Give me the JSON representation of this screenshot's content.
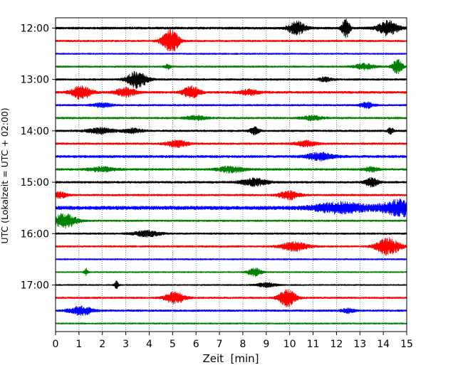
{
  "chart_data": {
    "type": "line",
    "chart_kind": "helicorder seismogram",
    "title": "",
    "xlabel": "Zeit  [min]",
    "ylabel": "UTC (Lokalzeit = UTC + 02:00)",
    "xlim": [
      0,
      15
    ],
    "x_ticks": [
      "0",
      "1",
      "2",
      "3",
      "4",
      "5",
      "6",
      "7",
      "8",
      "9",
      "10",
      "11",
      "12",
      "13",
      "14",
      "15"
    ],
    "y_ticks": [
      {
        "label": "12:00",
        "row": 0
      },
      {
        "label": "13:00",
        "row": 4
      },
      {
        "label": "14:00",
        "row": 8
      },
      {
        "label": "15:00",
        "row": 12
      },
      {
        "label": "16:00",
        "row": 16
      },
      {
        "label": "17:00",
        "row": 20
      }
    ],
    "vertical_grid": "dotted at every minute",
    "line_colors": [
      "#000000",
      "#ff0000",
      "#0000ff",
      "#008000"
    ],
    "series": [
      {
        "start": "12:00",
        "color": "#000000",
        "noise": 1.6,
        "events": [
          {
            "t": 10.3,
            "amp": 9,
            "w": 0.25
          },
          {
            "t": 12.4,
            "amp": 14,
            "w": 0.12
          },
          {
            "t": 14.2,
            "amp": 10,
            "w": 0.3
          }
        ]
      },
      {
        "start": "12:15",
        "color": "#ff0000",
        "noise": 1.2,
        "events": [
          {
            "t": 5.0,
            "amp": 14,
            "w": 0.2
          },
          {
            "t": 4.7,
            "amp": 6,
            "w": 0.2
          }
        ]
      },
      {
        "start": "12:30",
        "color": "#0000ff",
        "noise": 1.0,
        "events": []
      },
      {
        "start": "12:45",
        "color": "#008000",
        "noise": 1.2,
        "events": [
          {
            "t": 14.6,
            "amp": 10,
            "w": 0.15
          },
          {
            "t": 13.2,
            "amp": 4,
            "w": 0.3
          },
          {
            "t": 4.8,
            "amp": 3,
            "w": 0.1
          }
        ]
      },
      {
        "start": "13:00",
        "color": "#000000",
        "noise": 1.3,
        "events": [
          {
            "t": 3.5,
            "amp": 12,
            "w": 0.3
          },
          {
            "t": 11.5,
            "amp": 3,
            "w": 0.2
          }
        ]
      },
      {
        "start": "13:15",
        "color": "#ff0000",
        "noise": 1.5,
        "events": [
          {
            "t": 1.1,
            "amp": 9,
            "w": 0.3
          },
          {
            "t": 3.0,
            "amp": 6,
            "w": 0.3
          },
          {
            "t": 5.8,
            "amp": 8,
            "w": 0.25
          },
          {
            "t": 8.3,
            "amp": 4,
            "w": 0.3
          }
        ]
      },
      {
        "start": "13:30",
        "color": "#0000ff",
        "noise": 1.2,
        "events": [
          {
            "t": 2.0,
            "amp": 3,
            "w": 0.3
          },
          {
            "t": 13.3,
            "amp": 4,
            "w": 0.2
          }
        ]
      },
      {
        "start": "13:45",
        "color": "#008000",
        "noise": 1.3,
        "events": [
          {
            "t": 6.0,
            "amp": 3,
            "w": 0.3
          },
          {
            "t": 11.0,
            "amp": 3,
            "w": 0.3
          }
        ]
      },
      {
        "start": "14:00",
        "color": "#000000",
        "noise": 1.3,
        "events": [
          {
            "t": 1.9,
            "amp": 4,
            "w": 0.4
          },
          {
            "t": 3.3,
            "amp": 3,
            "w": 0.3
          },
          {
            "t": 8.5,
            "amp": 5,
            "w": 0.15
          },
          {
            "t": 14.3,
            "amp": 5,
            "w": 0.08
          }
        ]
      },
      {
        "start": "14:15",
        "color": "#ff0000",
        "noise": 1.3,
        "events": [
          {
            "t": 5.2,
            "amp": 5,
            "w": 0.3
          },
          {
            "t": 10.7,
            "amp": 4,
            "w": 0.3
          }
        ]
      },
      {
        "start": "14:30",
        "color": "#0000ff",
        "noise": 1.7,
        "events": [
          {
            "t": 11.3,
            "amp": 5,
            "w": 0.4
          }
        ]
      },
      {
        "start": "14:45",
        "color": "#008000",
        "noise": 1.4,
        "events": [
          {
            "t": 2.0,
            "amp": 3,
            "w": 0.4
          },
          {
            "t": 7.5,
            "amp": 4,
            "w": 0.4
          },
          {
            "t": 13.5,
            "amp": 3,
            "w": 0.2
          }
        ]
      },
      {
        "start": "15:00",
        "color": "#000000",
        "noise": 1.4,
        "events": [
          {
            "t": 8.5,
            "amp": 5,
            "w": 0.4
          },
          {
            "t": 13.5,
            "amp": 6,
            "w": 0.2
          }
        ]
      },
      {
        "start": "15:15",
        "color": "#ff0000",
        "noise": 1.3,
        "events": [
          {
            "t": 0.2,
            "amp": 4,
            "w": 0.2
          },
          {
            "t": 10.0,
            "amp": 6,
            "w": 0.3
          }
        ]
      },
      {
        "start": "15:30",
        "color": "#0000ff",
        "noise": 2.5,
        "events": [
          {
            "t": 12.2,
            "amp": 7,
            "w": 0.8
          },
          {
            "t": 14.8,
            "amp": 11,
            "w": 0.6
          }
        ]
      },
      {
        "start": "15:45",
        "color": "#008000",
        "noise": 1.2,
        "events": [
          {
            "t": 0.4,
            "amp": 10,
            "w": 0.35
          }
        ]
      },
      {
        "start": "16:00",
        "color": "#000000",
        "noise": 1.2,
        "events": [
          {
            "t": 3.9,
            "amp": 4,
            "w": 0.4
          }
        ]
      },
      {
        "start": "16:15",
        "color": "#ff0000",
        "noise": 1.2,
        "events": [
          {
            "t": 10.2,
            "amp": 6,
            "w": 0.4
          },
          {
            "t": 14.2,
            "amp": 12,
            "w": 0.35
          }
        ]
      },
      {
        "start": "16:30",
        "color": "#0000ff",
        "noise": 1.0,
        "events": []
      },
      {
        "start": "16:45",
        "color": "#008000",
        "noise": 0.9,
        "events": [
          {
            "t": 1.3,
            "amp": 5,
            "w": 0.06
          },
          {
            "t": 8.5,
            "amp": 6,
            "w": 0.2
          }
        ]
      },
      {
        "start": "17:00",
        "color": "#000000",
        "noise": 0.9,
        "events": [
          {
            "t": 2.6,
            "amp": 5,
            "w": 0.06
          },
          {
            "t": 9.0,
            "amp": 3,
            "w": 0.3
          }
        ]
      },
      {
        "start": "17:15",
        "color": "#ff0000",
        "noise": 1.2,
        "events": [
          {
            "t": 5.1,
            "amp": 8,
            "w": 0.3
          },
          {
            "t": 9.9,
            "amp": 12,
            "w": 0.25
          }
        ]
      },
      {
        "start": "17:30",
        "color": "#0000ff",
        "noise": 1.3,
        "events": [
          {
            "t": 1.1,
            "amp": 6,
            "w": 0.35
          },
          {
            "t": 12.5,
            "amp": 3,
            "w": 0.2
          }
        ]
      },
      {
        "start": "17:45",
        "color": "#008000",
        "noise": 1.0,
        "events": []
      }
    ]
  }
}
